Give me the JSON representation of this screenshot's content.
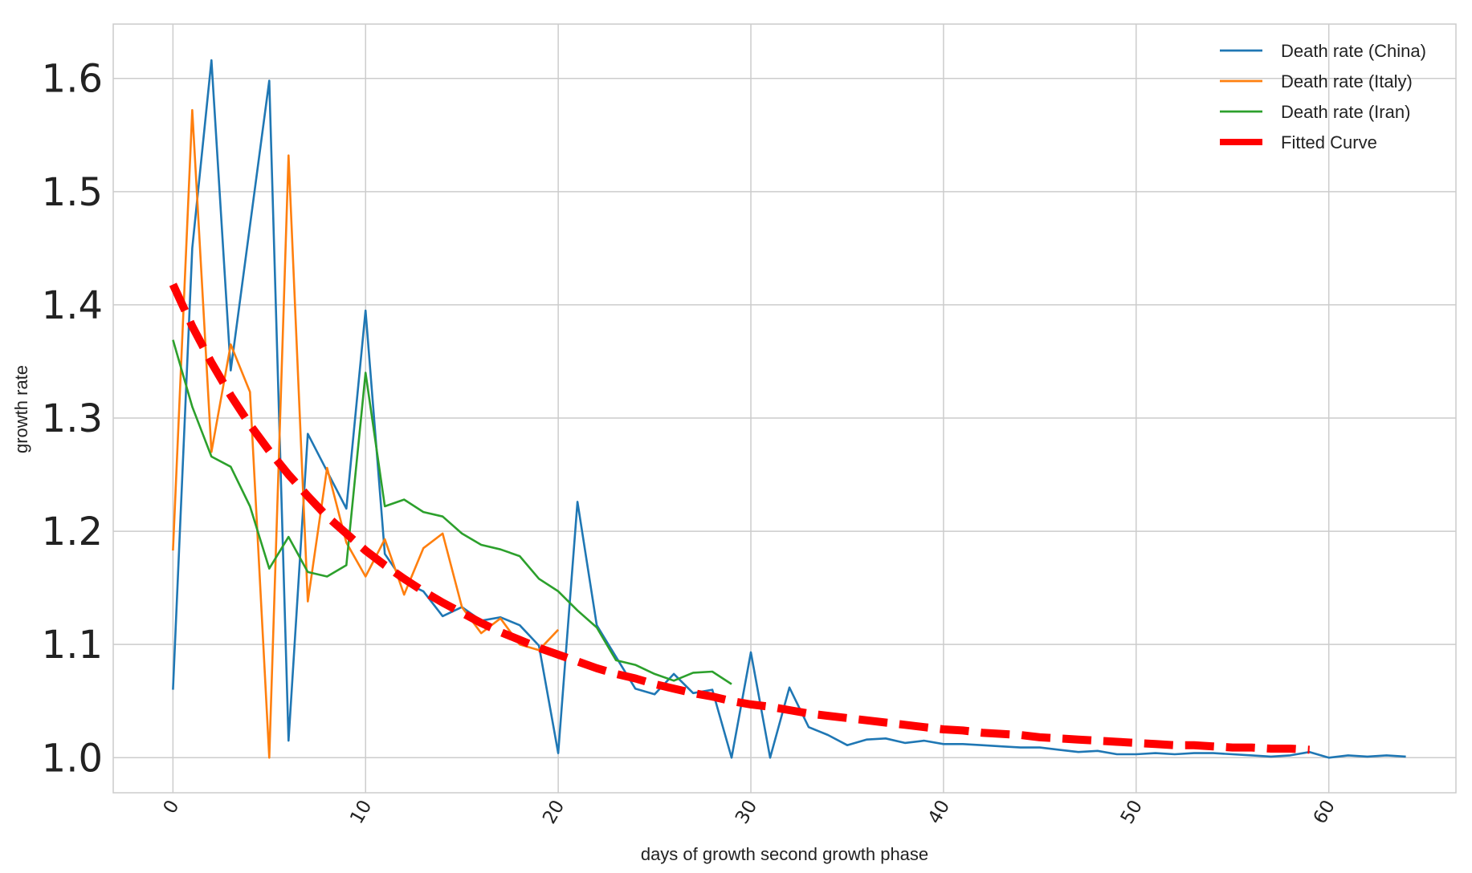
{
  "chart_data": {
    "type": "line",
    "title": "",
    "xlabel": "days of growth second growth phase",
    "ylabel": "growth rate",
    "xlim": [
      -3.1,
      66.6
    ],
    "ylim": [
      0.969,
      1.648
    ],
    "x_ticks": [
      0,
      10,
      20,
      30,
      40,
      50,
      60
    ],
    "y_ticks": [
      1.0,
      1.1,
      1.2,
      1.3,
      1.4,
      1.5,
      1.6
    ],
    "y_tick_labels": [
      "1.0",
      "1.1",
      "1.2",
      "1.3",
      "1.4",
      "1.5",
      "1.6"
    ],
    "grid": true,
    "legend_position": "top-right",
    "series": [
      {
        "name": "Death rate (China)",
        "color": "#1f77b4",
        "style": "solid",
        "x": [
          0,
          1,
          2,
          3,
          4,
          5,
          6,
          7,
          8,
          9,
          10,
          11,
          12,
          13,
          14,
          15,
          16,
          17,
          18,
          19,
          20,
          21,
          22,
          23,
          24,
          25,
          26,
          27,
          28,
          29,
          30,
          31,
          32,
          33,
          34,
          35,
          36,
          37,
          38,
          39,
          40,
          41,
          42,
          43,
          44,
          45,
          46,
          47,
          48,
          49,
          50,
          51,
          52,
          53,
          54,
          55,
          56,
          57,
          58,
          59,
          60,
          61,
          62,
          63,
          64
        ],
        "y": [
          1.06,
          1.45,
          1.616,
          1.342,
          1.47,
          1.598,
          1.015,
          1.286,
          1.253,
          1.22,
          1.395,
          1.18,
          1.155,
          1.147,
          1.125,
          1.133,
          1.121,
          1.124,
          1.117,
          1.099,
          1.004,
          1.226,
          1.117,
          1.089,
          1.061,
          1.056,
          1.074,
          1.057,
          1.06,
          1.0,
          1.093,
          1.0,
          1.062,
          1.027,
          1.02,
          1.011,
          1.016,
          1.017,
          1.013,
          1.015,
          1.012,
          1.012,
          1.011,
          1.01,
          1.009,
          1.009,
          1.007,
          1.005,
          1.006,
          1.003,
          1.003,
          1.004,
          1.003,
          1.004,
          1.004,
          1.003,
          1.002,
          1.001,
          1.002,
          1.005,
          1.0,
          1.002,
          1.001,
          1.002,
          1.001
        ]
      },
      {
        "name": "Death rate (Italy)",
        "color": "#ff7f0e",
        "style": "solid",
        "x": [
          0,
          1,
          2,
          3,
          4,
          5,
          6,
          7,
          8,
          9,
          10,
          11,
          12,
          13,
          14,
          15,
          16,
          17,
          18,
          19,
          20
        ],
        "y": [
          1.183,
          1.572,
          1.27,
          1.365,
          1.323,
          1.0,
          1.532,
          1.138,
          1.256,
          1.19,
          1.16,
          1.193,
          1.144,
          1.185,
          1.198,
          1.133,
          1.11,
          1.123,
          1.1,
          1.095,
          1.113
        ]
      },
      {
        "name": "Death rate (Iran)",
        "color": "#2ca02c",
        "style": "solid",
        "x": [
          0,
          1,
          2,
          3,
          4,
          5,
          6,
          7,
          8,
          9,
          10,
          11,
          12,
          13,
          14,
          15,
          16,
          17,
          18,
          19,
          20,
          21,
          22,
          23,
          24,
          25,
          26,
          27,
          28,
          29
        ],
        "y": [
          1.369,
          1.31,
          1.266,
          1.257,
          1.222,
          1.167,
          1.195,
          1.164,
          1.16,
          1.17,
          1.34,
          1.222,
          1.228,
          1.217,
          1.213,
          1.198,
          1.188,
          1.184,
          1.178,
          1.158,
          1.147,
          1.13,
          1.115,
          1.086,
          1.082,
          1.074,
          1.068,
          1.075,
          1.076,
          1.065
        ]
      },
      {
        "name": "Fitted Curve",
        "color": "#ff0000",
        "style": "dashed",
        "x": [
          0,
          1,
          2,
          3,
          4,
          5,
          6,
          7,
          8,
          9,
          10,
          11,
          12,
          13,
          14,
          15,
          16,
          17,
          18,
          19,
          20,
          21,
          22,
          23,
          24,
          25,
          26,
          27,
          28,
          29,
          30,
          31,
          32,
          33,
          34,
          35,
          36,
          37,
          38,
          39,
          40,
          41,
          42,
          43,
          44,
          45,
          46,
          47,
          48,
          49,
          50,
          51,
          52,
          53,
          54,
          55,
          56,
          57,
          58,
          59
        ],
        "y": [
          1.418,
          1.381,
          1.349,
          1.32,
          1.294,
          1.271,
          1.25,
          1.231,
          1.213,
          1.198,
          1.183,
          1.17,
          1.158,
          1.147,
          1.137,
          1.128,
          1.119,
          1.111,
          1.104,
          1.097,
          1.091,
          1.085,
          1.079,
          1.074,
          1.07,
          1.065,
          1.061,
          1.057,
          1.054,
          1.05,
          1.047,
          1.045,
          1.042,
          1.039,
          1.037,
          1.035,
          1.033,
          1.031,
          1.029,
          1.027,
          1.025,
          1.024,
          1.022,
          1.021,
          1.02,
          1.018,
          1.017,
          1.016,
          1.015,
          1.014,
          1.013,
          1.012,
          1.011,
          1.011,
          1.01,
          1.009,
          1.009,
          1.008,
          1.008,
          1.007
        ]
      }
    ]
  }
}
